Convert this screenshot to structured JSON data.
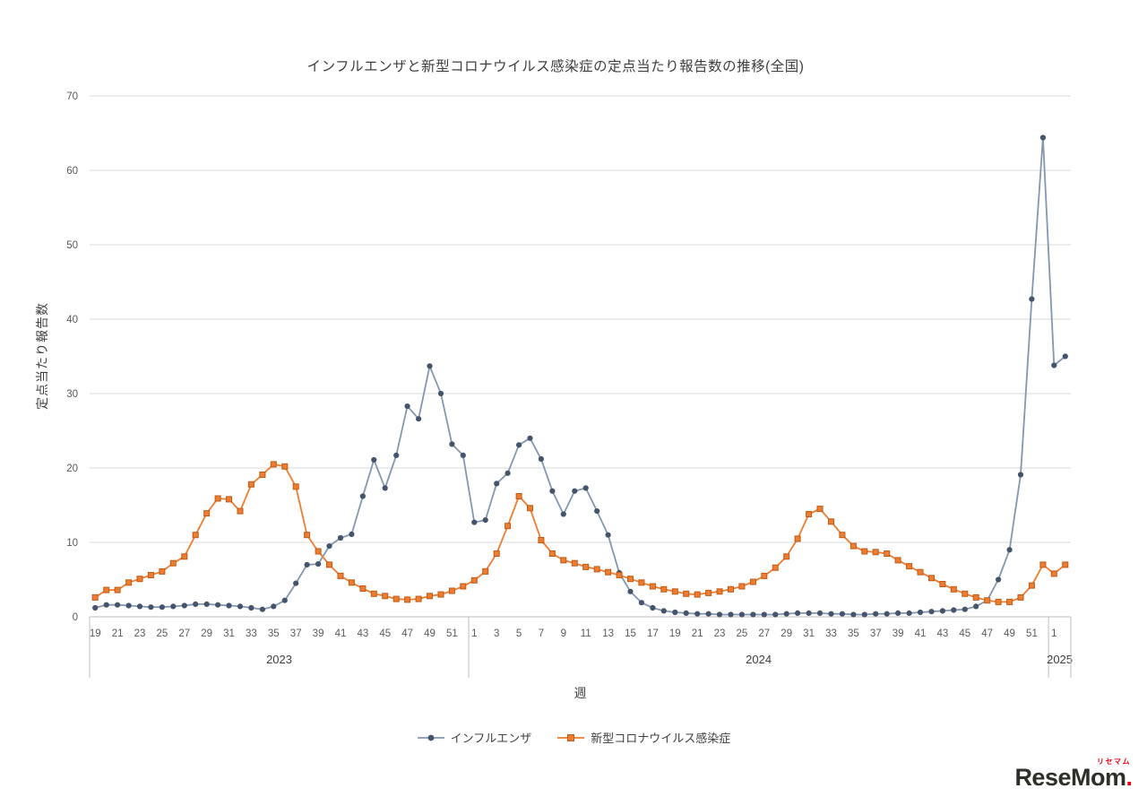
{
  "logo": {
    "brand": "ReseMom",
    "dot": ".",
    "ruby": "リセマム"
  },
  "chart_data": {
    "type": "line",
    "title": "インフルエンザと新型コロナウイルス感染症の定点当たり報告数の推移(全国)",
    "xlabel": "週",
    "ylabel": "定点当たり報告数",
    "ylim": [
      0,
      70
    ],
    "yticks": [
      0,
      10,
      20,
      30,
      40,
      50,
      60,
      70
    ],
    "grid": true,
    "legend_position": "bottom",
    "x_groups": [
      {
        "year": "2023",
        "start_week": 19,
        "end_week": 52
      },
      {
        "year": "2024",
        "start_week": 1,
        "end_week": 52
      },
      {
        "year": "2025",
        "start_week": 1,
        "end_week": 2
      }
    ],
    "series": [
      {
        "name": "インフルエンザ",
        "marker": "circle",
        "line_color": "#8497B0",
        "marker_color": "#44546A",
        "values": [
          1.2,
          1.6,
          1.6,
          1.5,
          1.4,
          1.3,
          1.3,
          1.4,
          1.5,
          1.7,
          1.7,
          1.6,
          1.5,
          1.4,
          1.2,
          1.0,
          1.4,
          2.2,
          4.5,
          7.0,
          7.1,
          9.5,
          10.6,
          11.1,
          16.2,
          21.1,
          17.3,
          21.7,
          28.3,
          26.6,
          33.7,
          30.0,
          23.2,
          21.7,
          12.7,
          13.0,
          17.9,
          19.3,
          23.1,
          24.0,
          21.2,
          16.9,
          13.8,
          16.9,
          17.3,
          14.2,
          11.0,
          5.9,
          3.4,
          1.9,
          1.2,
          0.8,
          0.6,
          0.5,
          0.4,
          0.4,
          0.3,
          0.3,
          0.3,
          0.3,
          0.3,
          0.3,
          0.4,
          0.5,
          0.5,
          0.5,
          0.4,
          0.4,
          0.3,
          0.3,
          0.4,
          0.4,
          0.5,
          0.5,
          0.6,
          0.7,
          0.8,
          0.9,
          1.0,
          1.4,
          2.2,
          5.0,
          9.0,
          19.1,
          42.7,
          64.4,
          33.8,
          35.0
        ]
      },
      {
        "name": "新型コロナウイルス感染症",
        "marker": "square",
        "line_color": "#ED7D31",
        "marker_color": "#ED7D31",
        "marker_edge": "#BF5B17",
        "values": [
          2.6,
          3.6,
          3.6,
          4.6,
          5.1,
          5.6,
          6.1,
          7.2,
          8.1,
          11.0,
          13.9,
          15.9,
          15.8,
          14.2,
          17.8,
          19.1,
          20.5,
          20.2,
          17.5,
          11.0,
          8.8,
          7.0,
          5.5,
          4.6,
          3.8,
          3.1,
          2.8,
          2.4,
          2.3,
          2.4,
          2.8,
          3.0,
          3.5,
          4.1,
          4.9,
          6.1,
          8.5,
          12.2,
          16.2,
          14.6,
          10.3,
          8.5,
          7.6,
          7.2,
          6.7,
          6.4,
          6.0,
          5.6,
          5.1,
          4.6,
          4.1,
          3.7,
          3.4,
          3.1,
          3.0,
          3.2,
          3.4,
          3.7,
          4.1,
          4.7,
          5.5,
          6.6,
          8.1,
          10.5,
          13.8,
          14.5,
          12.8,
          11.0,
          9.5,
          8.8,
          8.7,
          8.5,
          7.6,
          6.8,
          6.0,
          5.2,
          4.4,
          3.7,
          3.1,
          2.6,
          2.2,
          2.0,
          2.0,
          2.6,
          4.2,
          7.0,
          5.8,
          7.0
        ]
      }
    ]
  }
}
